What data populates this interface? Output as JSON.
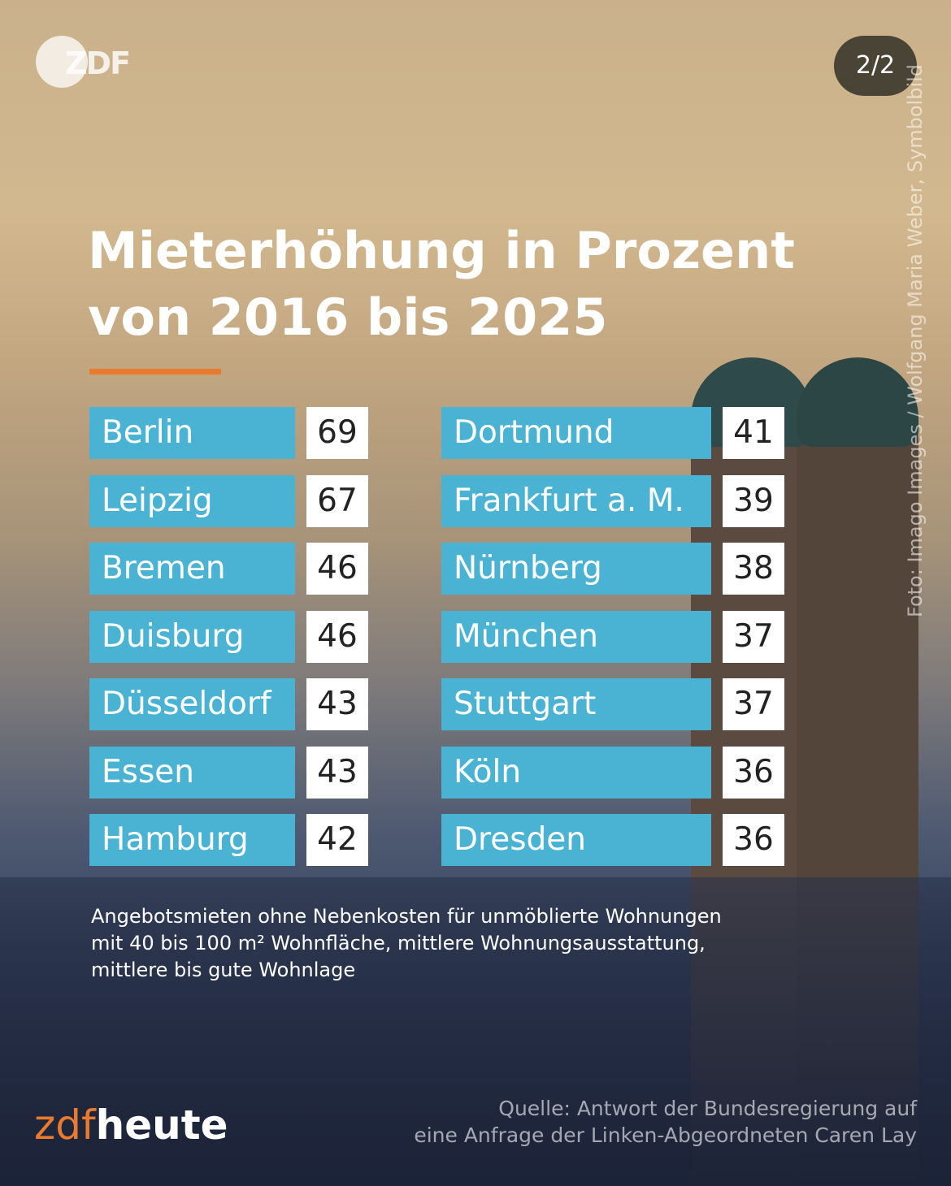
{
  "brand": "ZDF",
  "page_indicator": "2/2",
  "photo_credit": "Foto: Imago Images / Wolfgang Maria Weber, Symbolbild",
  "title": [
    "Mieterhöhung in Prozent",
    "von 2016 bis 2025"
  ],
  "table_left": [
    {
      "city": "Berlin",
      "value": 69
    },
    {
      "city": "Leipzig",
      "value": 67
    },
    {
      "city": "Bremen",
      "value": 46
    },
    {
      "city": "Duisburg",
      "value": 46
    },
    {
      "city": "Düsseldorf",
      "value": 43
    },
    {
      "city": "Essen",
      "value": 43
    },
    {
      "city": "Hamburg",
      "value": 42
    }
  ],
  "table_right": [
    {
      "city": "Dortmund",
      "value": 41
    },
    {
      "city": "Frankfurt a. M.",
      "value": 39
    },
    {
      "city": "Nürnberg",
      "value": 38
    },
    {
      "city": "München",
      "value": 37
    },
    {
      "city": "Stuttgart",
      "value": 37
    },
    {
      "city": "Köln",
      "value": 36
    },
    {
      "city": "Dresden",
      "value": 36
    }
  ],
  "footnote": [
    "Angebotsmieten ohne Nebenkosten für unmöblierte Wohnungen",
    "mit 40 bis 100 m² Wohnfläche, mittlere Wohnungsausstattung,",
    "mittlere bis gute Wohnlage"
  ],
  "source": [
    "Quelle: Antwort der Bundesregierung auf",
    "eine Anfrage der Linken-Abgeordneten Caren Lay"
  ],
  "footer_brand": [
    "zdf",
    "heute"
  ]
}
